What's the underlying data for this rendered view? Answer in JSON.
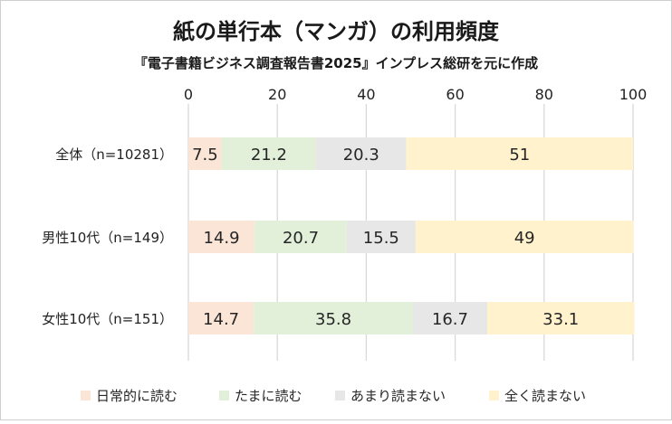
{
  "chart_data": {
    "type": "bar",
    "orientation": "horizontal",
    "stacked": true,
    "title": "紙の単行本（マンガ）の利用頻度",
    "subtitle": "『電子書籍ビジネス調査報告書2025』インプレス総研を元に作成",
    "categories": [
      "全体（n=10281）",
      "男性10代（n=149）",
      "女性10代（n=151）"
    ],
    "xlim": [
      0,
      100
    ],
    "xticks": [
      "0",
      "20",
      "40",
      "60",
      "80",
      "100"
    ],
    "grid": true,
    "legend_position": "bottom",
    "series": [
      {
        "name": "日常的に読む",
        "color": "#fbe5d6",
        "values": [
          7.5,
          14.9,
          14.7
        ],
        "labels": [
          "7.5",
          "14.9",
          "14.7"
        ]
      },
      {
        "name": "たまに読む",
        "color": "#e2f0d9",
        "values": [
          21.2,
          20.7,
          35.8
        ],
        "labels": [
          "21.2",
          "20.7",
          "35.8"
        ]
      },
      {
        "name": "あまり読まない",
        "color": "#e7e7e7",
        "values": [
          20.3,
          15.5,
          16.7
        ],
        "labels": [
          "20.3",
          "15.5",
          "16.7"
        ]
      },
      {
        "name": "全く読まない",
        "color": "#fff2cc",
        "values": [
          51,
          49,
          33.1
        ],
        "labels": [
          "51",
          "49",
          "33.1"
        ]
      }
    ]
  }
}
